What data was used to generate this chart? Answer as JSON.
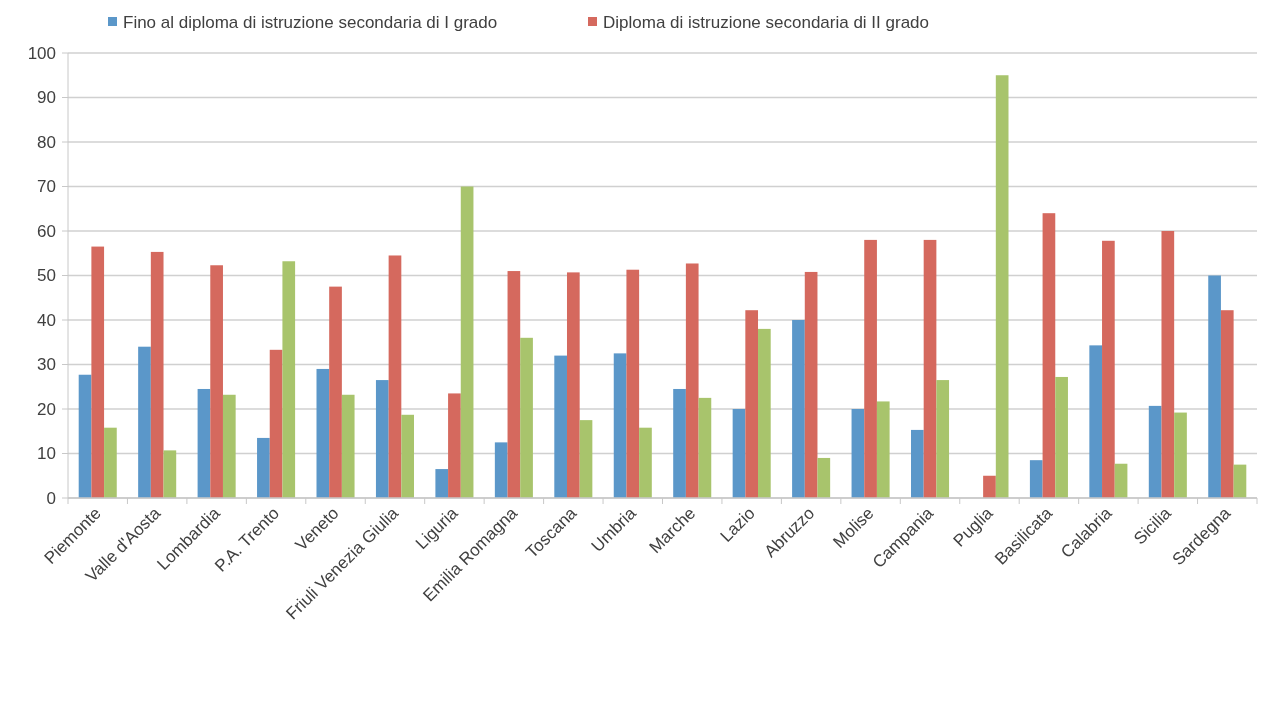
{
  "chart_data": {
    "type": "bar",
    "categories": [
      "Piemonte",
      "Valle d'Aosta",
      "Lombardia",
      "P.A. Trento",
      "Veneto",
      "Friuli Venezia Giulia",
      "Liguria",
      "Emilia Romagna",
      "Toscana",
      "Umbria",
      "Marche",
      "Lazio",
      "Abruzzo",
      "Molise",
      "Campania",
      "Puglia",
      "Basilicata",
      "Calabria",
      "Sicilia",
      "Sardegna"
    ],
    "series": [
      {
        "name": "Fino al diploma di istruzione secondaria di I grado",
        "color": "#5b97c9",
        "values": [
          27.7,
          34,
          24.5,
          13.5,
          29,
          26.5,
          6.5,
          12.5,
          32,
          32.5,
          24.5,
          20,
          40,
          20,
          15.3,
          null,
          8.5,
          34.3,
          20.7,
          50
        ]
      },
      {
        "name": "Diploma di istruzione secondaria di II grado",
        "color": "#d5695e",
        "values": [
          56.5,
          55.3,
          52.3,
          33.3,
          47.5,
          54.5,
          23.5,
          51,
          50.7,
          51.3,
          52.7,
          42.2,
          50.8,
          58,
          58,
          5,
          64,
          57.8,
          60,
          42.2
        ]
      },
      {
        "color": "#a8c46c",
        "values": [
          15.8,
          10.7,
          23.2,
          53.2,
          23.2,
          18.7,
          70,
          36,
          17.5,
          15.8,
          22.5,
          38,
          9,
          21.7,
          26.5,
          95,
          27.2,
          7.7,
          19.2,
          7.5
        ]
      }
    ],
    "ylim": [
      0,
      100
    ],
    "yticks": [
      0,
      10,
      20,
      30,
      40,
      50,
      60,
      70,
      80,
      90,
      100
    ],
    "grid": "y",
    "legend": "top"
  }
}
